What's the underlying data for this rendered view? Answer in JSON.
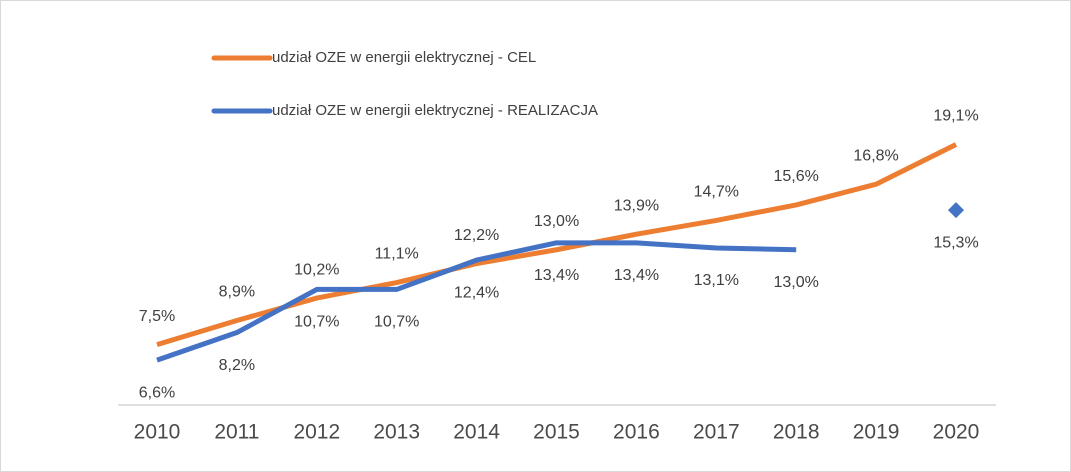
{
  "chart_data": {
    "type": "line",
    "categories": [
      "2010",
      "2011",
      "2012",
      "2013",
      "2014",
      "2015",
      "2016",
      "2017",
      "2018",
      "2019",
      "2020"
    ],
    "series": [
      {
        "name": "udział OZE w energii elektrycznej - CEL",
        "color": "#ed7d31",
        "values": [
          7.5,
          8.9,
          10.2,
          11.1,
          12.2,
          13.0,
          13.9,
          14.7,
          15.6,
          16.8,
          19.1
        ],
        "value_labels": [
          "7,5%",
          "8,9%",
          "10,2%",
          "11,1%",
          "12,2%",
          "13,0%",
          "13,9%",
          "14,7%",
          "15,6%",
          "16,8%",
          "19,1%"
        ]
      },
      {
        "name": "udział OZE w energii elektrycznej - REALIZACJA",
        "color": "#4472c4",
        "values": [
          6.6,
          8.2,
          10.7,
          10.7,
          12.4,
          13.4,
          13.4,
          13.1,
          13.0,
          null,
          15.3
        ],
        "value_labels": [
          "6,6%",
          "8,2%",
          "10,7%",
          "10,7%",
          "12,4%",
          "13,4%",
          "13,4%",
          "13,1%",
          "13,0%",
          null,
          "15,3%"
        ]
      }
    ],
    "ylim": [
      4,
      20
    ],
    "grid": false,
    "legend": "top-left"
  }
}
